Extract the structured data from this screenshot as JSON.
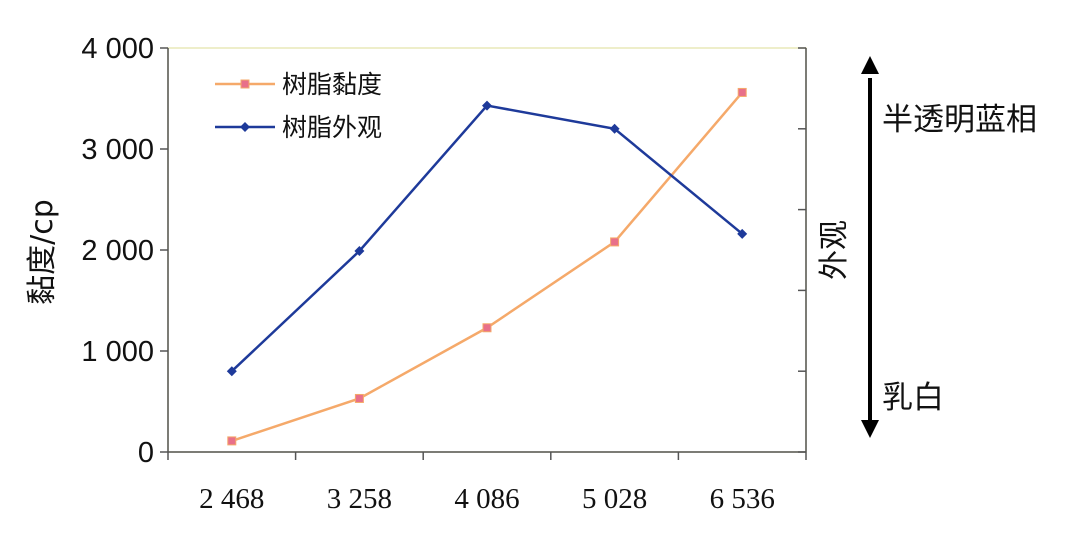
{
  "chart_data": {
    "type": "line",
    "categories": [
      "2 468",
      "3 258",
      "4 086",
      "5 028",
      "6 536"
    ],
    "ylabel": "黏度/cp",
    "ylim": [
      0,
      4000
    ],
    "yticks": [
      "0",
      "1 000",
      "2 000",
      "3 000",
      "4 000"
    ],
    "y2label": "外观",
    "y2_scale_labels": {
      "top": "半透明蓝相",
      "bottom": "乳白"
    },
    "grid": false,
    "legend_position": "top-left",
    "series": [
      {
        "name": "树脂黏度",
        "axis": "left",
        "color": "#F5A96A",
        "marker_color": "#E8708A",
        "values": [
          110,
          530,
          1230,
          2080,
          3560
        ]
      },
      {
        "name": "树脂外观",
        "axis": "left",
        "color": "#1E3A9A",
        "marker_color": "#1E3A9A",
        "values": [
          800,
          1990,
          3430,
          3200,
          2160
        ]
      }
    ]
  }
}
